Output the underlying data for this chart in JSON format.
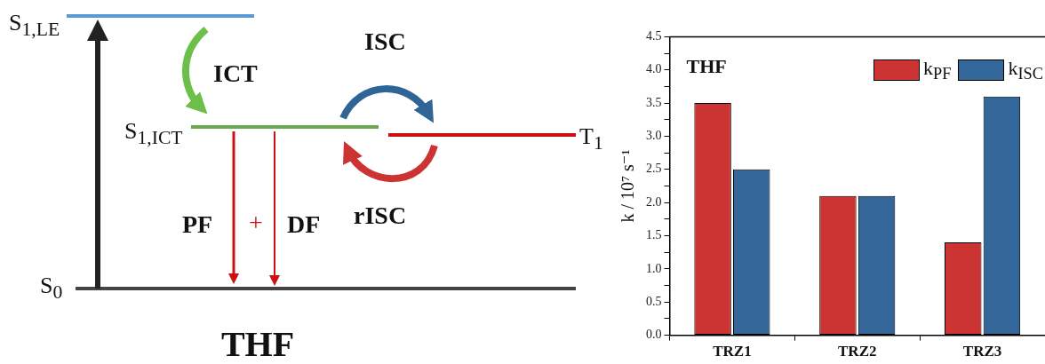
{
  "chart_data": [
    {
      "type": "other",
      "title": "THF",
      "annotations": [
        "S$_{1,LE}$",
        "ICT",
        "ISC",
        "S$_{1,ICT}$",
        "T$_{1}$",
        "PF",
        "+",
        "DF",
        "rISC",
        "S$_{0}$"
      ]
    },
    {
      "type": "bar",
      "categories": [
        "TRZ1",
        "TRZ2",
        "TRZ3"
      ],
      "ylabel": "k / 10⁷ s⁻¹",
      "series": [
        {
          "name": "k$_{PF}$",
          "color": "#cc3333",
          "values": [
            3.5,
            2.1,
            1.4
          ]
        },
        {
          "name": "k$_{ISC}$",
          "color": "#336699",
          "values": [
            2.5,
            2.1,
            3.6
          ]
        }
      ],
      "ylim": [
        0,
        4.5
      ],
      "yticks": [
        {
          "value": 0,
          "label": "0.0"
        },
        {
          "value": 0.25,
          "label": null
        },
        {
          "value": 0.5,
          "label": "0.5"
        },
        {
          "value": 0.75,
          "label": null
        },
        {
          "value": 1,
          "label": "1.0"
        },
        {
          "value": 1.25,
          "label": null
        },
        {
          "value": 1.5,
          "label": "1.5"
        },
        {
          "value": 1.75,
          "label": null
        },
        {
          "value": 2,
          "label": "2.0"
        },
        {
          "value": 2.25,
          "label": null
        },
        {
          "value": 2.5,
          "label": "2.5"
        },
        {
          "value": 2.75,
          "label": null
        },
        {
          "value": 3,
          "label": "3.0"
        },
        {
          "value": 3.25,
          "label": null
        },
        {
          "value": 3.5,
          "label": "3.5"
        },
        {
          "value": 3.75,
          "label": null
        },
        {
          "value": 4,
          "label": "4.0"
        },
        {
          "value": 4.25,
          "label": null
        },
        {
          "value": 4.5,
          "label": "4.5"
        }
      ],
      "annotations": [
        "THF"
      ],
      "legend": "top right",
      "grid": false
    }
  ]
}
